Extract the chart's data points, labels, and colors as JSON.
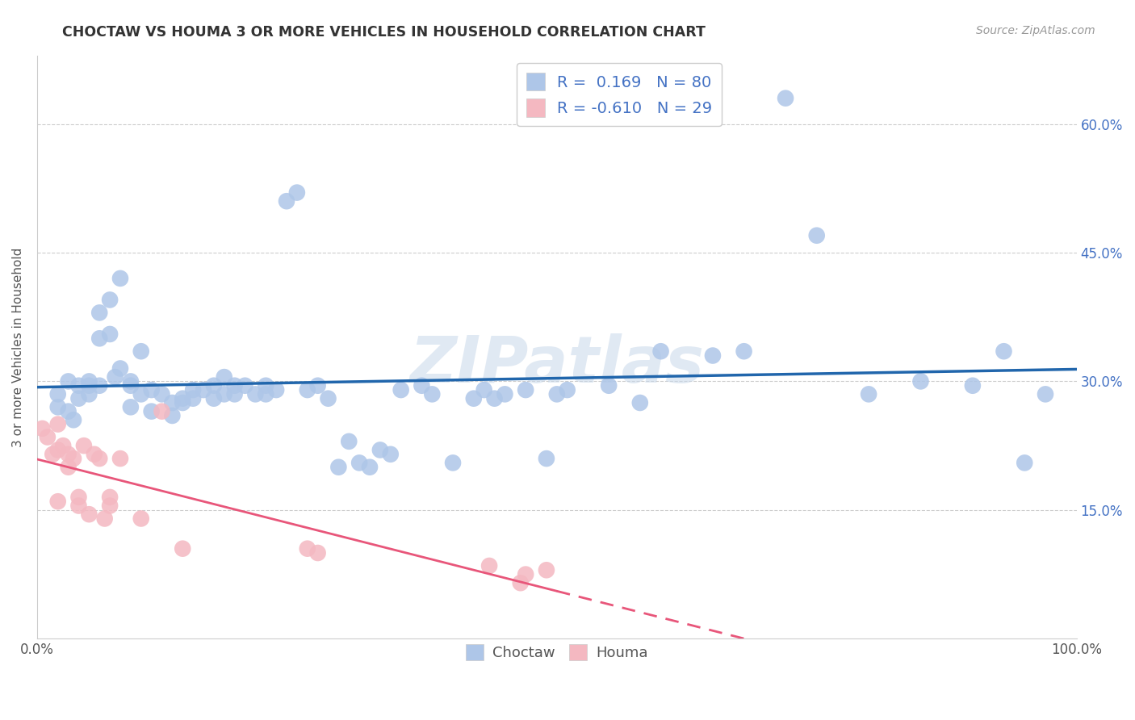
{
  "title": "CHOCTAW VS HOUMA 3 OR MORE VEHICLES IN HOUSEHOLD CORRELATION CHART",
  "source": "Source: ZipAtlas.com",
  "ylabel": "3 or more Vehicles in Household",
  "xlim": [
    0,
    1.0
  ],
  "ylim": [
    0,
    0.68
  ],
  "xtick_positions": [
    0.0,
    1.0
  ],
  "xtick_labels": [
    "0.0%",
    "100.0%"
  ],
  "ytick_values": [
    0.15,
    0.3,
    0.45,
    0.6
  ],
  "ytick_labels": [
    "15.0%",
    "30.0%",
    "45.0%",
    "60.0%"
  ],
  "grid_color": "#cccccc",
  "background_color": "#ffffff",
  "choctaw_color": "#aec6e8",
  "houma_color": "#f4b8c1",
  "choctaw_line_color": "#2166ac",
  "houma_line_color": "#e8567a",
  "choctaw_R": "0.169",
  "choctaw_N": "80",
  "houma_R": "-0.610",
  "houma_N": "29",
  "watermark": "ZIPatlas",
  "legend_label_choctaw": "Choctaw",
  "legend_label_houma": "Houma",
  "choctaw_x": [
    0.02,
    0.02,
    0.03,
    0.03,
    0.035,
    0.04,
    0.04,
    0.05,
    0.05,
    0.05,
    0.06,
    0.06,
    0.06,
    0.07,
    0.07,
    0.075,
    0.08,
    0.08,
    0.09,
    0.09,
    0.09,
    0.1,
    0.1,
    0.11,
    0.11,
    0.12,
    0.13,
    0.13,
    0.14,
    0.14,
    0.15,
    0.15,
    0.16,
    0.17,
    0.17,
    0.18,
    0.18,
    0.19,
    0.19,
    0.2,
    0.21,
    0.22,
    0.22,
    0.23,
    0.24,
    0.25,
    0.26,
    0.27,
    0.28,
    0.29,
    0.3,
    0.31,
    0.32,
    0.33,
    0.34,
    0.35,
    0.37,
    0.38,
    0.4,
    0.42,
    0.43,
    0.44,
    0.45,
    0.47,
    0.49,
    0.51,
    0.55,
    0.58,
    0.6,
    0.65,
    0.68,
    0.72,
    0.75,
    0.8,
    0.85,
    0.9,
    0.93,
    0.95,
    0.97,
    0.5
  ],
  "choctaw_y": [
    0.285,
    0.27,
    0.3,
    0.265,
    0.255,
    0.295,
    0.28,
    0.295,
    0.3,
    0.285,
    0.38,
    0.35,
    0.295,
    0.395,
    0.355,
    0.305,
    0.42,
    0.315,
    0.3,
    0.295,
    0.27,
    0.335,
    0.285,
    0.29,
    0.265,
    0.285,
    0.275,
    0.26,
    0.28,
    0.275,
    0.29,
    0.28,
    0.29,
    0.295,
    0.28,
    0.305,
    0.285,
    0.295,
    0.285,
    0.295,
    0.285,
    0.295,
    0.285,
    0.29,
    0.51,
    0.52,
    0.29,
    0.295,
    0.28,
    0.2,
    0.23,
    0.205,
    0.2,
    0.22,
    0.215,
    0.29,
    0.295,
    0.285,
    0.205,
    0.28,
    0.29,
    0.28,
    0.285,
    0.29,
    0.21,
    0.29,
    0.295,
    0.275,
    0.335,
    0.33,
    0.335,
    0.63,
    0.47,
    0.285,
    0.3,
    0.295,
    0.335,
    0.205,
    0.285,
    0.285
  ],
  "houma_x": [
    0.005,
    0.01,
    0.015,
    0.02,
    0.02,
    0.02,
    0.025,
    0.03,
    0.03,
    0.035,
    0.04,
    0.04,
    0.045,
    0.05,
    0.055,
    0.06,
    0.065,
    0.07,
    0.07,
    0.08,
    0.1,
    0.12,
    0.14,
    0.26,
    0.27,
    0.435,
    0.465,
    0.47,
    0.49
  ],
  "houma_y": [
    0.245,
    0.235,
    0.215,
    0.25,
    0.22,
    0.16,
    0.225,
    0.215,
    0.2,
    0.21,
    0.165,
    0.155,
    0.225,
    0.145,
    0.215,
    0.21,
    0.14,
    0.155,
    0.165,
    0.21,
    0.14,
    0.265,
    0.105,
    0.105,
    0.1,
    0.085,
    0.065,
    0.075,
    0.08
  ]
}
